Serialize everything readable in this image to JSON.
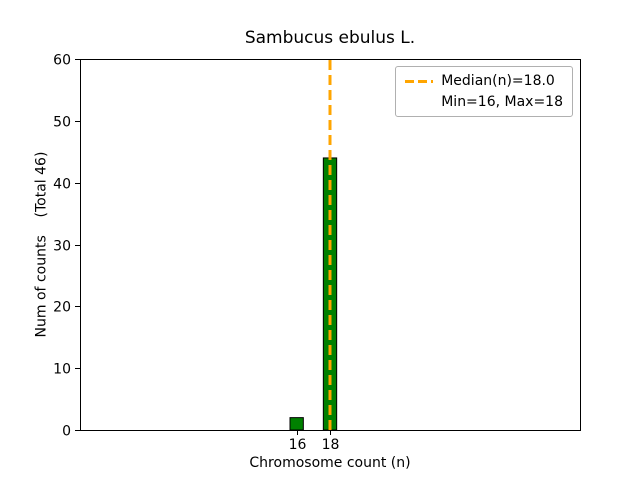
{
  "chart_data": {
    "type": "bar",
    "title": "Sambucus ebulus L.",
    "xlabel": "Chromosome count (n)",
    "ylabel": "Num of counts    (Total 46)",
    "total_counts": 46,
    "categories": [
      16,
      18
    ],
    "values": [
      2,
      44
    ],
    "bar_width": 0.8,
    "xlim": [
      3,
      33
    ],
    "ylim": [
      0,
      60
    ],
    "xticks": [
      16,
      18
    ],
    "yticks": [
      0,
      10,
      20,
      30,
      40,
      50,
      60
    ],
    "median": 18.0,
    "min": 16,
    "max": 18,
    "grid": false,
    "legend": {
      "position": "upper right",
      "median_label": "Median(n)=18.0",
      "minmax_label": "Min=16, Max=18"
    },
    "colors": {
      "bar": "#008000",
      "bar_edge": "#000000",
      "median_line": "#FFA500",
      "axis": "#000000",
      "legend_border": "#b0b0b0",
      "background": "#ffffff"
    }
  }
}
